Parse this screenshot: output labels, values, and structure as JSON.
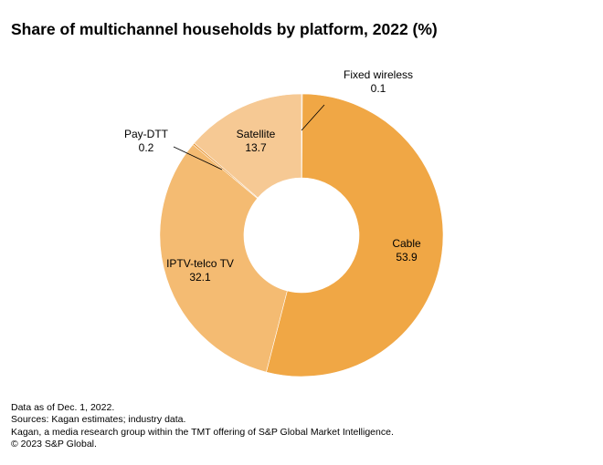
{
  "title": "Share of multichannel households by platform, 2022 (%)",
  "chart_data": {
    "type": "pie",
    "donut": true,
    "title": "Share of multichannel households by platform, 2022 (%)",
    "start": "12 o'clock",
    "direction": "clockwise",
    "slices": [
      {
        "label": "Fixed wireless",
        "value": 0.1,
        "color": "#e8932e"
      },
      {
        "label": "Cable",
        "value": 53.9,
        "color": "#f0a745"
      },
      {
        "label": "IPTV-telco TV",
        "value": 32.1,
        "color": "#f4bb72"
      },
      {
        "label": "Pay-DTT",
        "value": 0.2,
        "color": "#e8932e"
      },
      {
        "label": "Satellite",
        "value": 13.7,
        "color": "#f6c994"
      }
    ]
  },
  "footer": {
    "lines": [
      "Data as of  Dec. 1, 2022.",
      "Sources: Kagan estimates; industry data.",
      "Kagan, a media research group within the TMT offering of S&P Global Market Intelligence.",
      "© 2023 S&P Global."
    ]
  }
}
